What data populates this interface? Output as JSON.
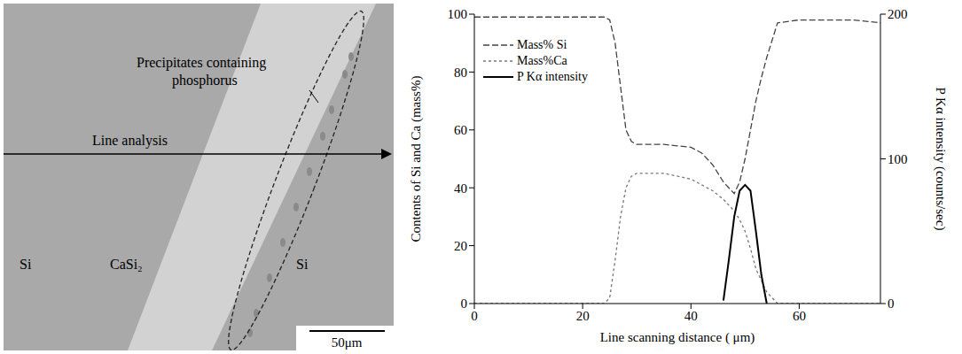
{
  "image": {
    "phases": [
      "Si",
      "CaSi₂",
      "Si"
    ],
    "annotation": [
      "Precipitates containing",
      "phosphorus"
    ],
    "arrow_label": "Line analysis",
    "scale_bar": "50μm"
  },
  "chart_data": {
    "type": "line",
    "xlabel": "Line scanning distance ( μm)",
    "ylabel": "Contents of Si and Ca (mass%)",
    "y2label": "P Kα intensity (counts/sec)",
    "x": [
      0,
      10,
      20,
      24,
      25,
      26,
      27,
      28,
      29,
      30,
      35,
      40,
      42,
      44,
      46,
      47,
      48,
      49,
      50,
      51,
      52,
      53,
      54,
      56,
      60,
      70,
      75
    ],
    "series": [
      {
        "name": "Mass% Si",
        "color": "#444444",
        "line_style": "dashed",
        "values": [
          99,
          99,
          99,
          99,
          98,
          90,
          75,
          60,
          56,
          55,
          55,
          54,
          52,
          48,
          42,
          40,
          38,
          42,
          50,
          60,
          70,
          78,
          85,
          97,
          98,
          98,
          97
        ]
      },
      {
        "name": "Mass%Ca",
        "color": "#777777",
        "line_style": "dotted",
        "values": [
          0,
          0,
          0,
          0,
          2,
          15,
          30,
          40,
          44,
          45,
          45,
          43,
          41,
          39,
          36,
          34,
          32,
          29,
          25,
          19,
          12,
          8,
          4,
          0,
          0,
          0,
          0
        ]
      },
      {
        "name": "P Kα intensity",
        "color": "#000000",
        "line_style": "solid",
        "axis": "y2",
        "values": [
          null,
          null,
          null,
          null,
          null,
          null,
          null,
          null,
          null,
          null,
          null,
          null,
          null,
          null,
          2,
          30,
          60,
          78,
          82,
          78,
          50,
          20,
          0,
          null,
          null,
          null,
          null
        ]
      }
    ],
    "xlim": [
      0,
      75
    ],
    "xticks": [
      0,
      20,
      40,
      60
    ],
    "ylim": [
      0,
      100
    ],
    "yticks": [
      0,
      20,
      40,
      60,
      80,
      100
    ],
    "y2lim": [
      0,
      200
    ],
    "y2ticks": [
      0,
      100,
      200
    ],
    "legend": "upper left",
    "grid": false
  }
}
